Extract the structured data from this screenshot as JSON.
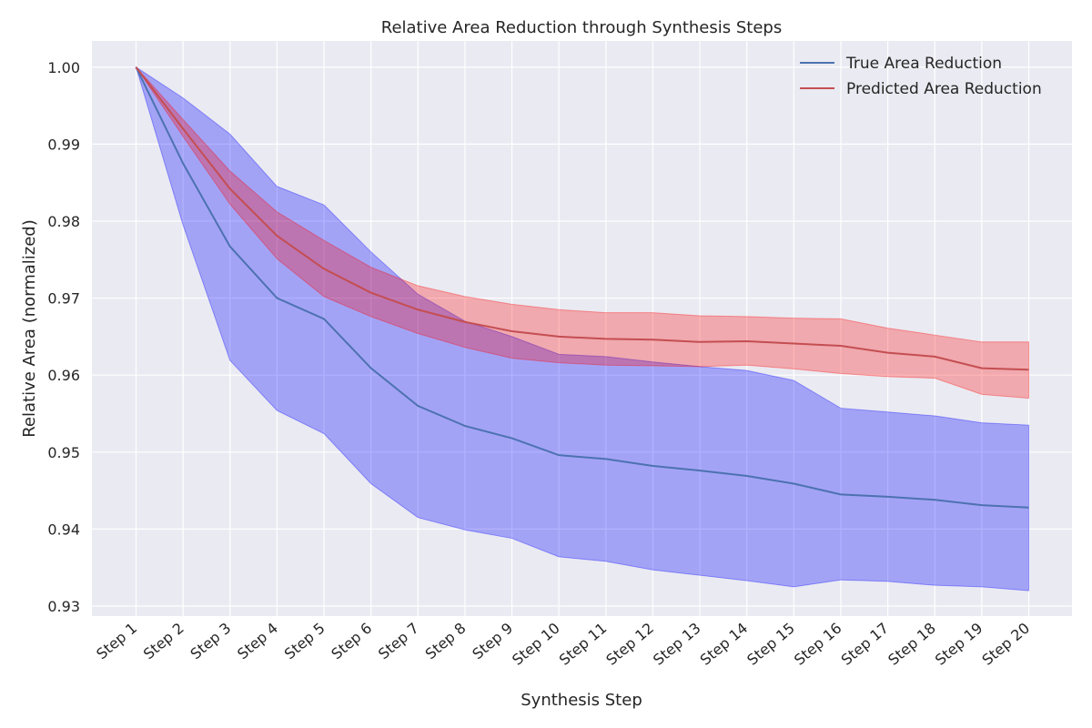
{
  "chart_data": {
    "type": "line",
    "title": "Relative Area Reduction through Synthesis Steps",
    "xlabel": "Synthesis Step",
    "ylabel": "Relative Area (normalized)",
    "categories": [
      "Step 1",
      "Step 2",
      "Step 3",
      "Step 4",
      "Step 5",
      "Step 6",
      "Step 7",
      "Step 8",
      "Step 9",
      "Step 10",
      "Step 11",
      "Step 12",
      "Step 13",
      "Step 14",
      "Step 15",
      "Step 16",
      "Step 17",
      "Step 18",
      "Step 19",
      "Step 20"
    ],
    "ylim": [
      0.9287,
      1.0034
    ],
    "yticks": [
      0.93,
      0.94,
      0.95,
      0.96,
      0.97,
      0.98,
      0.99,
      1.0
    ],
    "ytick_labels": [
      "0.93",
      "0.94",
      "0.95",
      "0.96",
      "0.97",
      "0.98",
      "0.99",
      "1.00"
    ],
    "grid": true,
    "legend_position": "top-right",
    "series": [
      {
        "name": "True Area Reduction",
        "color": "#4c72b0",
        "band_color": "#0000ff",
        "values": [
          1.0,
          0.9875,
          0.9767,
          0.97,
          0.9673,
          0.9609,
          0.956,
          0.9534,
          0.9518,
          0.9496,
          0.9491,
          0.9482,
          0.9476,
          0.9469,
          0.9459,
          0.9445,
          0.9442,
          0.9438,
          0.9431,
          0.9428
        ],
        "lower": [
          1.0,
          0.9795,
          0.9619,
          0.9554,
          0.9524,
          0.9459,
          0.9415,
          0.9399,
          0.9388,
          0.9364,
          0.9358,
          0.9347,
          0.934,
          0.9333,
          0.9325,
          0.9334,
          0.9332,
          0.9327,
          0.9325,
          0.932
        ],
        "upper": [
          1.0,
          0.996,
          0.9913,
          0.9845,
          0.9821,
          0.976,
          0.9705,
          0.967,
          0.965,
          0.9627,
          0.9624,
          0.9617,
          0.9611,
          0.9606,
          0.9593,
          0.9557,
          0.9552,
          0.9547,
          0.9538,
          0.9535
        ]
      },
      {
        "name": "Predicted Area Reduction",
        "color": "#c44e52",
        "band_color": "#ff0000",
        "values": [
          1.0,
          0.992,
          0.9842,
          0.9781,
          0.9738,
          0.9707,
          0.9685,
          0.9669,
          0.9657,
          0.965,
          0.9647,
          0.9646,
          0.9643,
          0.9644,
          0.9641,
          0.9638,
          0.9629,
          0.9624,
          0.9609,
          0.9607
        ],
        "lower": [
          1.0,
          0.991,
          0.9822,
          0.9751,
          0.9702,
          0.9676,
          0.9654,
          0.9636,
          0.9622,
          0.9616,
          0.9613,
          0.9612,
          0.9611,
          0.9613,
          0.9608,
          0.9602,
          0.9598,
          0.9596,
          0.9575,
          0.957
        ],
        "upper": [
          1.0,
          0.9932,
          0.9865,
          0.9812,
          0.9775,
          0.974,
          0.9716,
          0.9702,
          0.9692,
          0.9685,
          0.9681,
          0.9681,
          0.9677,
          0.9676,
          0.9674,
          0.9673,
          0.9661,
          0.9652,
          0.9643,
          0.9643
        ]
      }
    ]
  }
}
